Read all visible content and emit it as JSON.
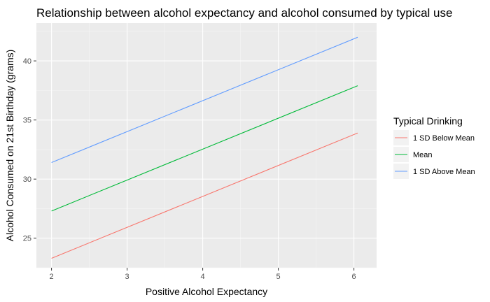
{
  "chart_data": {
    "type": "line",
    "title": "Relationship between alcohol expectancy and alcohol consumed by typical use",
    "xlabel": "Positive Alcohol Expectancy",
    "ylabel": "Alcohol Consumed on 21st Birthday (grams)",
    "xlim": [
      1.8,
      6.3
    ],
    "ylim": [
      22.5,
      43.2
    ],
    "x_ticks": [
      2,
      3,
      4,
      5,
      6
    ],
    "y_ticks": [
      25,
      30,
      35,
      40
    ],
    "grid": true,
    "legend": {
      "title": "Typical Drinking",
      "placement": "right"
    },
    "series": [
      {
        "name": "1 SD Below Mean",
        "color": "#F8766D",
        "x": [
          2,
          6.05
        ],
        "y": [
          23.3,
          33.9
        ]
      },
      {
        "name": "Mean",
        "color": "#00BA38",
        "x": [
          2,
          6.05
        ],
        "y": [
          27.3,
          37.9
        ]
      },
      {
        "name": "1 SD Above Mean",
        "color": "#619CFF",
        "x": [
          2,
          6.05
        ],
        "y": [
          31.4,
          42.0
        ]
      }
    ]
  }
}
